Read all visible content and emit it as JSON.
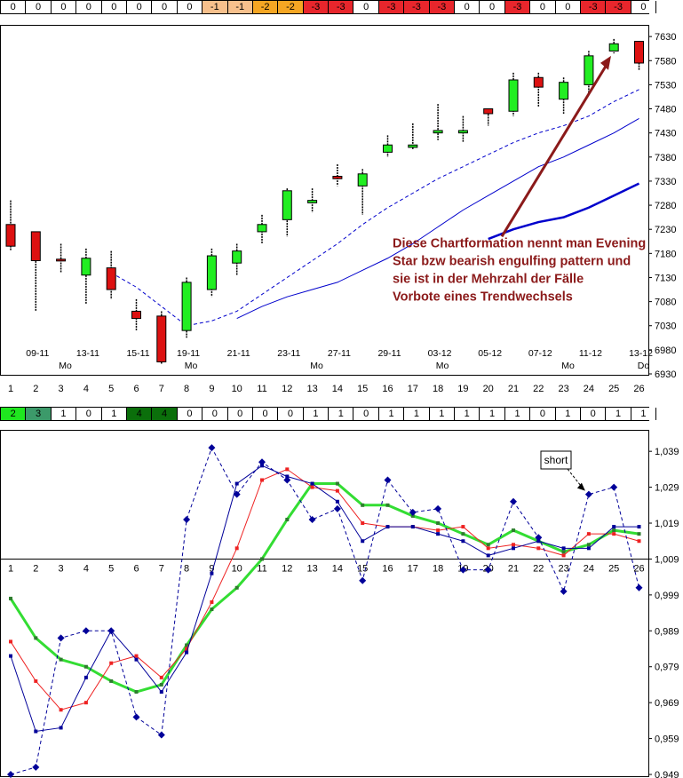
{
  "top_strip": {
    "values": [
      "0",
      "0",
      "0",
      "0",
      "0",
      "0",
      "0",
      "0",
      "-1",
      "-1",
      "-2",
      "-2",
      "-3",
      "-3",
      "0",
      "-3",
      "-3",
      "-3",
      "0",
      "0",
      "-3",
      "0",
      "0",
      "-3",
      "-3",
      "0"
    ],
    "colors": [
      "#fff",
      "#fff",
      "#fff",
      "#fff",
      "#fff",
      "#fff",
      "#fff",
      "#fff",
      "#f7c08c",
      "#f7c08c",
      "#f5a623",
      "#f5a623",
      "#e8262c",
      "#e8262c",
      "#fff",
      "#e8262c",
      "#e8262c",
      "#e8262c",
      "#fff",
      "#fff",
      "#e8262c",
      "#fff",
      "#fff",
      "#e8262c",
      "#e8262c",
      "#fff"
    ]
  },
  "mid_strip": {
    "values": [
      "2",
      "3",
      "1",
      "0",
      "1",
      "4",
      "4",
      "0",
      "0",
      "0",
      "0",
      "0",
      "1",
      "1",
      "0",
      "1",
      "1",
      "1",
      "1",
      "1",
      "1",
      "0",
      "1",
      "0",
      "1",
      "1"
    ],
    "colors": [
      "#1fe61f",
      "#3c9a6a",
      "#fff",
      "#fff",
      "#fff",
      "#0b6f0b",
      "#0b6f0b",
      "#fff",
      "#fff",
      "#fff",
      "#fff",
      "#fff",
      "#fff",
      "#fff",
      "#fff",
      "#fff",
      "#fff",
      "#fff",
      "#fff",
      "#fff",
      "#fff",
      "#fff",
      "#fff",
      "#fff",
      "#fff",
      "#fff"
    ]
  },
  "colors": {
    "bull": "#22ee22",
    "bear": "#dd1111",
    "ma": "#0000cc",
    "annotation": "#8b1a1a",
    "green_line": "#33dd33",
    "red_line": "#ee2222",
    "blue_line": "#000099"
  },
  "chart_data": [
    {
      "type": "candlestick",
      "y_ticks": [
        "7630",
        "7580",
        "7530",
        "7480",
        "7430",
        "7380",
        "7330",
        "7280",
        "7230",
        "7180",
        "7130",
        "7080",
        "7030",
        "6980",
        "6930"
      ],
      "ylim": [
        6930,
        7645
      ],
      "x_labels": [
        "1",
        "2",
        "3",
        "4",
        "5",
        "6",
        "7",
        "8",
        "9",
        "10",
        "11",
        "12",
        "13",
        "14",
        "15",
        "16",
        "17",
        "18",
        "19",
        "20",
        "21",
        "22",
        "23",
        "24",
        "25",
        "26"
      ],
      "date_labels": [
        {
          "day": 2,
          "text": "09-11"
        },
        {
          "day": 4,
          "text": "13-11"
        },
        {
          "day": 6,
          "text": "15-11"
        },
        {
          "day": 8,
          "text": "19-11"
        },
        {
          "day": 10,
          "text": "21-11"
        },
        {
          "day": 12,
          "text": "23-11"
        },
        {
          "day": 14,
          "text": "27-11"
        },
        {
          "day": 16,
          "text": "29-11"
        },
        {
          "day": 18,
          "text": "03-12"
        },
        {
          "day": 20,
          "text": "05-12"
        },
        {
          "day": 22,
          "text": "07-12"
        },
        {
          "day": 24,
          "text": "11-12"
        },
        {
          "day": 26,
          "text": "13-12"
        }
      ],
      "weekday_labels": [
        {
          "day": 3,
          "text": "Mo"
        },
        {
          "day": 8,
          "text": "Mo"
        },
        {
          "day": 13,
          "text": "Mo"
        },
        {
          "day": 18,
          "text": "Mo"
        },
        {
          "day": 23,
          "text": "Mo"
        },
        {
          "day": 26,
          "text": "Do"
        }
      ],
      "candles": [
        {
          "o": 7240,
          "h": 7290,
          "l": 7185,
          "c": 7195
        },
        {
          "o": 7225,
          "h": 7225,
          "l": 7060,
          "c": 7165
        },
        {
          "o": 7168,
          "h": 7200,
          "l": 7140,
          "c": 7165
        },
        {
          "o": 7135,
          "h": 7190,
          "l": 7075,
          "c": 7170
        },
        {
          "o": 7150,
          "h": 7185,
          "l": 7085,
          "c": 7105
        },
        {
          "o": 7060,
          "h": 7085,
          "l": 7020,
          "c": 7045
        },
        {
          "o": 7050,
          "h": 7060,
          "l": 6950,
          "c": 6955
        },
        {
          "o": 7020,
          "h": 7130,
          "l": 7005,
          "c": 7120
        },
        {
          "o": 7105,
          "h": 7190,
          "l": 7090,
          "c": 7175
        },
        {
          "o": 7160,
          "h": 7200,
          "l": 7135,
          "c": 7185
        },
        {
          "o": 7225,
          "h": 7260,
          "l": 7200,
          "c": 7240
        },
        {
          "o": 7250,
          "h": 7315,
          "l": 7215,
          "c": 7310
        },
        {
          "o": 7285,
          "h": 7315,
          "l": 7265,
          "c": 7290
        },
        {
          "o": 7340,
          "h": 7365,
          "l": 7320,
          "c": 7335
        },
        {
          "o": 7320,
          "h": 7355,
          "l": 7260,
          "c": 7345
        },
        {
          "o": 7390,
          "h": 7425,
          "l": 7380,
          "c": 7405
        },
        {
          "o": 7400,
          "h": 7450,
          "l": 7395,
          "c": 7405
        },
        {
          "o": 7430,
          "h": 7490,
          "l": 7415,
          "c": 7435
        },
        {
          "o": 7430,
          "h": 7465,
          "l": 7410,
          "c": 7435
        },
        {
          "o": 7480,
          "h": 7480,
          "l": 7445,
          "c": 7470
        },
        {
          "o": 7475,
          "h": 7555,
          "l": 7465,
          "c": 7540
        },
        {
          "o": 7545,
          "h": 7555,
          "l": 7485,
          "c": 7525
        },
        {
          "o": 7500,
          "h": 7545,
          "l": 7470,
          "c": 7535
        },
        {
          "o": 7530,
          "h": 7600,
          "l": 7510,
          "c": 7590
        },
        {
          "o": 7600,
          "h": 7625,
          "l": 7595,
          "c": 7615
        },
        {
          "o": 7620,
          "h": 7620,
          "l": 7560,
          "c": 7575
        }
      ],
      "ma_dashed": [
        null,
        null,
        null,
        null,
        7140,
        7110,
        7070,
        7030,
        7040,
        7060,
        7095,
        7130,
        7165,
        7200,
        7240,
        7275,
        7305,
        7335,
        7360,
        7385,
        7410,
        7430,
        7445,
        7465,
        7495,
        7520
      ],
      "ma_thin": [
        null,
        null,
        null,
        null,
        null,
        null,
        null,
        null,
        null,
        7045,
        7070,
        7090,
        7105,
        7120,
        7145,
        7170,
        7200,
        7235,
        7270,
        7300,
        7330,
        7360,
        7380,
        7405,
        7430,
        7460
      ],
      "ma_thick": [
        null,
        null,
        null,
        null,
        null,
        null,
        null,
        null,
        null,
        null,
        null,
        null,
        null,
        null,
        null,
        null,
        null,
        null,
        null,
        7210,
        7230,
        7245,
        7255,
        7275,
        7300,
        7325
      ],
      "annotation": "Diese Chartformation nennt man Evening Star bzw bearish engulfing pattern und sie ist in der Mehrzahl der Fälle Vorbote eines Trendwechsels"
    },
    {
      "type": "line",
      "x": [
        "1",
        "2",
        "3",
        "4",
        "5",
        "6",
        "7",
        "8",
        "9",
        "10",
        "11",
        "12",
        "13",
        "14",
        "15",
        "16",
        "17",
        "18",
        "19",
        "20",
        "21",
        "22",
        "23",
        "24",
        "25",
        "26"
      ],
      "y_ticks": [
        "1,039",
        "1,029",
        "1,019",
        "1,009",
        "0,999",
        "0,989",
        "0,979",
        "0,969",
        "0,959",
        "0,949"
      ],
      "ylim": [
        0.949,
        1.043
      ],
      "annotation": "short",
      "series": [
        {
          "key": "green",
          "values": [
            0.998,
            0.987,
            0.981,
            0.979,
            0.975,
            0.972,
            0.974,
            0.985,
            0.995,
            1.001,
            1.009,
            1.02,
            1.03,
            1.03,
            1.024,
            1.024,
            1.021,
            1.019,
            1.016,
            1.013,
            1.017,
            1.014,
            1.011,
            1.013,
            1.017,
            1.016
          ]
        },
        {
          "key": "red",
          "values": [
            0.986,
            0.975,
            0.967,
            0.969,
            0.98,
            0.982,
            0.976,
            0.984,
            0.997,
            1.012,
            1.031,
            1.034,
            1.029,
            1.028,
            1.019,
            1.018,
            1.018,
            1.017,
            1.018,
            1.012,
            1.013,
            1.012,
            1.01,
            1.016,
            1.016,
            1.014
          ]
        },
        {
          "key": "blue",
          "values": [
            0.982,
            0.961,
            0.962,
            0.976,
            0.989,
            0.981,
            0.972,
            0.983,
            1.005,
            1.03,
            1.035,
            1.032,
            1.03,
            1.025,
            1.014,
            1.018,
            1.018,
            1.016,
            1.014,
            1.01,
            1.012,
            1.014,
            1.012,
            1.012,
            1.018,
            1.018
          ]
        },
        {
          "key": "dashed",
          "values": [
            0.949,
            0.951,
            0.987,
            0.989,
            0.989,
            0.965,
            0.96,
            1.02,
            1.04,
            1.027,
            1.036,
            1.031,
            1.02,
            1.023,
            1.003,
            1.031,
            1.022,
            1.023,
            1.006,
            1.006,
            1.025,
            1.015,
            1.0,
            1.027,
            1.029,
            1.001
          ]
        }
      ]
    }
  ]
}
